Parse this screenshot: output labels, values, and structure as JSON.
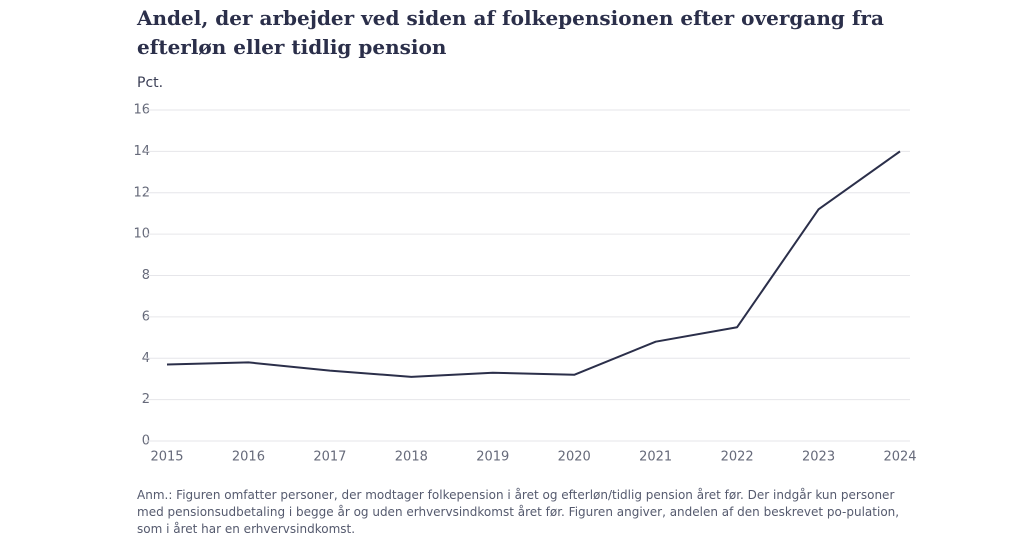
{
  "chart_data": {
    "type": "line",
    "title": "Andel, der arbejder ved siden af folkepensionen efter overgang fra efterløn eller tidlig pension",
    "y_label": "Pct.",
    "categories": [
      "2015",
      "2016",
      "2017",
      "2018",
      "2019",
      "2020",
      "2021",
      "2022",
      "2023",
      "2024"
    ],
    "values": [
      3.7,
      3.8,
      3.4,
      3.1,
      3.3,
      3.2,
      4.8,
      5.5,
      11.2,
      14.0
    ],
    "color": "#2b2f4a",
    "ylim": [
      0,
      16
    ],
    "yticks": [
      0,
      2,
      4,
      6,
      8,
      10,
      12,
      14,
      16
    ],
    "grid": true,
    "note": "Anm.: Figuren omfatter personer, der modtager folkepension i året og efterløn/tidlig pension året før. Der indgår kun personer med pensionsudbetaling i begge år og uden erhvervsindkomst året før. Figuren angiver, andelen af den beskrevet po-pulation, som i året har en erhvervsindkomst."
  }
}
